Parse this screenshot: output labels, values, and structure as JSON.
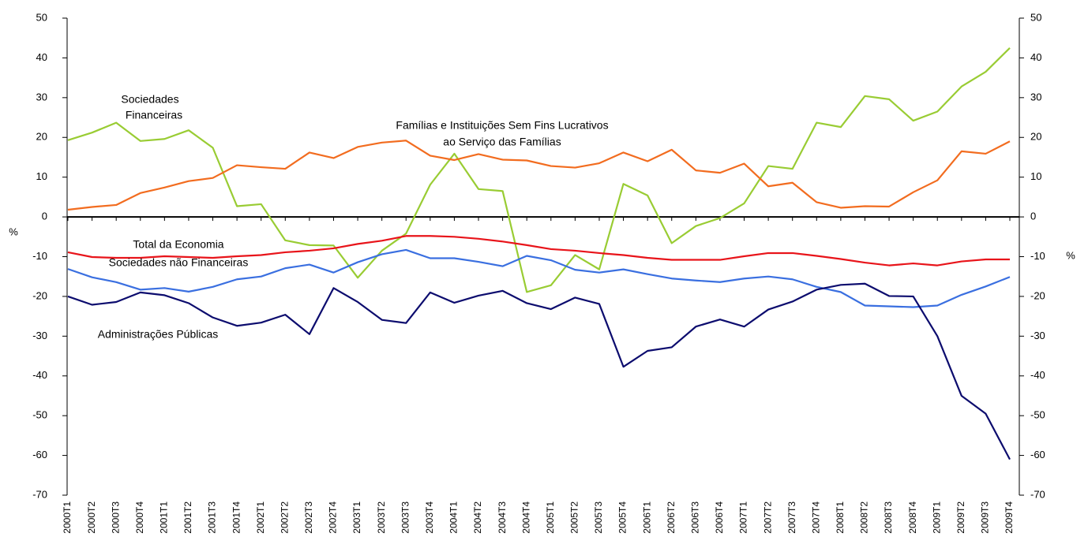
{
  "chart_data": {
    "type": "line",
    "categories": [
      "2000T1",
      "2000T2",
      "2000T3",
      "2000T4",
      "2001T1",
      "2001T2",
      "2001T3",
      "2001T4",
      "2002T1",
      "2002T2",
      "2002T3",
      "2002T4",
      "2003T1",
      "2003T2",
      "2003T3",
      "2003T4",
      "2004T1",
      "2004T2",
      "2004T3",
      "2004T4",
      "2005T1",
      "2005T2",
      "2005T3",
      "2005T4",
      "2006T1",
      "2006T2",
      "2006T3",
      "2006T4",
      "2007T1",
      "2007T2",
      "2007T3",
      "2007T4",
      "2008T1",
      "2008T2",
      "2008T3",
      "2008T4",
      "2009T1",
      "2009T2",
      "2009T3",
      "2009T4"
    ],
    "series": [
      {
        "name": "Sociedades Financeiras",
        "color": "#99cc33",
        "values": [
          19.3,
          21.2,
          23.7,
          19.1,
          19.6,
          21.8,
          17.4,
          2.7,
          3.2,
          -5.9,
          -7.1,
          -7.2,
          -15.3,
          -8.5,
          -4.2,
          8.1,
          15.9,
          7,
          6.5,
          -18.9,
          -17.2,
          -9.6,
          -13.2,
          8.3,
          5.4,
          -6.6,
          -2.3,
          -0.3,
          3.4,
          12.8,
          12.1,
          23.7,
          22.6,
          30.4,
          29.6,
          24.2,
          26.5,
          32.8,
          36.5,
          42.5
        ]
      },
      {
        "name": "Famílias e Instituições Sem Fins Lucrativos ao Serviço das Famílias",
        "color": "#f26c1f",
        "values": [
          1.8,
          2.5,
          3,
          6,
          7.4,
          9,
          9.8,
          13,
          12.5,
          12.1,
          16.2,
          14.8,
          17.6,
          18.7,
          19.2,
          15.4,
          14.3,
          15.8,
          14.4,
          14.2,
          12.8,
          12.4,
          13.5,
          16.2,
          14,
          16.9,
          11.7,
          11.1,
          13.4,
          7.7,
          8.6,
          3.7,
          2.3,
          2.7,
          2.6,
          6.2,
          9.2,
          16.5,
          15.9,
          19
        ]
      },
      {
        "name": "Total da Economia",
        "color": "#e8141a",
        "values": [
          -8.9,
          -10.1,
          -10.3,
          -10.3,
          -9.9,
          -10.1,
          -10.3,
          -9.9,
          -9.6,
          -8.9,
          -8.5,
          -7.9,
          -6.8,
          -6,
          -4.8,
          -4.8,
          -5,
          -5.5,
          -6.2,
          -7.1,
          -8.1,
          -8.5,
          -9.1,
          -9.6,
          -10.3,
          -10.8,
          -10.8,
          -10.8,
          -9.9,
          -9.1,
          -9.1,
          -9.8,
          -10.6,
          -11.5,
          -12.2,
          -11.7,
          -12.2,
          -11.2,
          -10.7,
          -10.7
        ]
      },
      {
        "name": "Sociedades não Financeiras",
        "color": "#3a6fe0",
        "values": [
          -13.1,
          -15.2,
          -16.4,
          -18.3,
          -17.9,
          -18.8,
          -17.6,
          -15.7,
          -15,
          -12.9,
          -12,
          -14,
          -11.4,
          -9.4,
          -8.3,
          -10.4,
          -10.4,
          -11.3,
          -12.4,
          -9.8,
          -10.9,
          -13.3,
          -14,
          -13.2,
          -14.4,
          -15.5,
          -16,
          -16.4,
          -15.5,
          -15,
          -15.7,
          -17.6,
          -18.9,
          -22.3,
          -22.5,
          -22.7,
          -22.3,
          -19.6,
          -17.5,
          -15.1
        ]
      },
      {
        "name": "Administrações Públicas",
        "color": "#0c0c6e",
        "values": [
          -20,
          -22.1,
          -21.4,
          -19,
          -19.7,
          -21.7,
          -25.3,
          -27.4,
          -26.6,
          -24.6,
          -29.5,
          -17.9,
          -21.4,
          -25.9,
          -26.7,
          -19,
          -21.6,
          -19.8,
          -18.6,
          -21.7,
          -23.2,
          -20.3,
          -21.9,
          -37.7,
          -33.7,
          -32.8,
          -27.6,
          -25.8,
          -27.6,
          -23.3,
          -21.3,
          -18.3,
          -17.1,
          -16.8,
          -19.9,
          -20,
          -30,
          -45,
          -49.5,
          -61
        ]
      }
    ],
    "annotations": [
      [
        "Sociedades",
        "Financeiras"
      ],
      [
        "Famílias e Instituições Sem Fins Lucrativos",
        "ao Serviço das Famílias"
      ],
      [
        "Total da Economia"
      ],
      [
        "Sociedades não Financeiras"
      ],
      [
        "Administrações Públicas"
      ]
    ],
    "ylabel": "%",
    "y2label": "%",
    "ylim": [
      -70,
      50
    ],
    "yticks": [
      -70,
      -60,
      -50,
      -40,
      -30,
      -20,
      -10,
      0,
      10,
      20,
      30,
      40,
      50
    ],
    "y2lim": [
      -70,
      50
    ],
    "y2ticks": [
      -70,
      -60,
      -50,
      -40,
      -30,
      -20,
      -10,
      0,
      10,
      20,
      30,
      40,
      50
    ]
  }
}
